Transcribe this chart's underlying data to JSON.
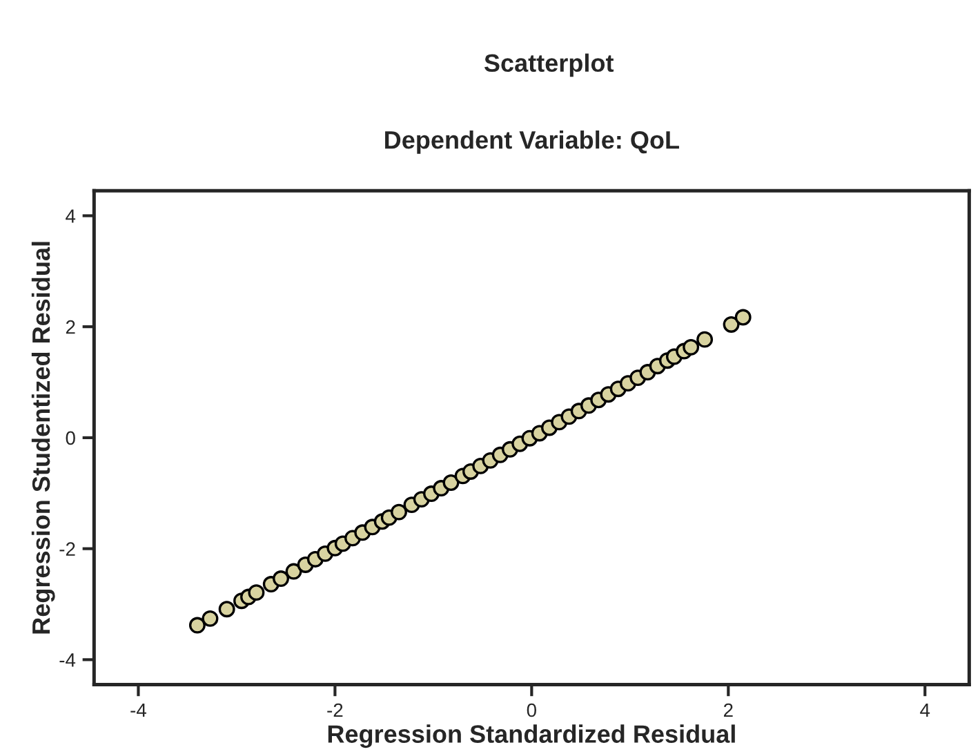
{
  "chart_data": {
    "type": "scatter",
    "title": "Scatterplot",
    "subtitle": "Dependent Variable: QoL",
    "xlabel": "Regression Standardized Residual",
    "ylabel": "Regression Studentized Residual",
    "xlim": [
      -4.45,
      4.45
    ],
    "ylim": [
      -4.45,
      4.45
    ],
    "xticks": [
      -4,
      -2,
      0,
      2,
      4
    ],
    "yticks": [
      -4,
      -2,
      0,
      2,
      4
    ],
    "grid": false,
    "marker": "circle",
    "series": [
      {
        "color": "#d8d3a0",
        "x": [
          -3.4,
          -3.27,
          -3.1,
          -2.95,
          -2.88,
          -2.8,
          -2.65,
          -2.55,
          -2.42,
          -2.3,
          -2.2,
          -2.1,
          -2.0,
          -1.92,
          -1.82,
          -1.72,
          -1.62,
          -1.52,
          -1.45,
          -1.35,
          -1.22,
          -1.12,
          -1.02,
          -0.92,
          -0.82,
          -0.7,
          -0.62,
          -0.52,
          -0.42,
          -0.32,
          -0.22,
          -0.12,
          -0.02,
          0.08,
          0.18,
          0.28,
          0.38,
          0.48,
          0.58,
          0.68,
          0.78,
          0.88,
          0.98,
          1.08,
          1.18,
          1.28,
          1.38,
          1.45,
          1.55,
          1.62,
          1.76,
          2.03,
          2.15
        ],
        "values": [
          -3.38,
          -3.26,
          -3.09,
          -2.94,
          -2.87,
          -2.79,
          -2.64,
          -2.54,
          -2.41,
          -2.29,
          -2.19,
          -2.09,
          -1.99,
          -1.91,
          -1.81,
          -1.71,
          -1.61,
          -1.51,
          -1.44,
          -1.34,
          -1.21,
          -1.11,
          -1.01,
          -0.91,
          -0.81,
          -0.69,
          -0.61,
          -0.51,
          -0.41,
          -0.31,
          -0.21,
          -0.11,
          -0.01,
          0.08,
          0.18,
          0.28,
          0.38,
          0.48,
          0.58,
          0.68,
          0.78,
          0.88,
          0.98,
          1.08,
          1.18,
          1.29,
          1.39,
          1.46,
          1.56,
          1.63,
          1.77,
          2.04,
          2.17
        ]
      }
    ]
  }
}
